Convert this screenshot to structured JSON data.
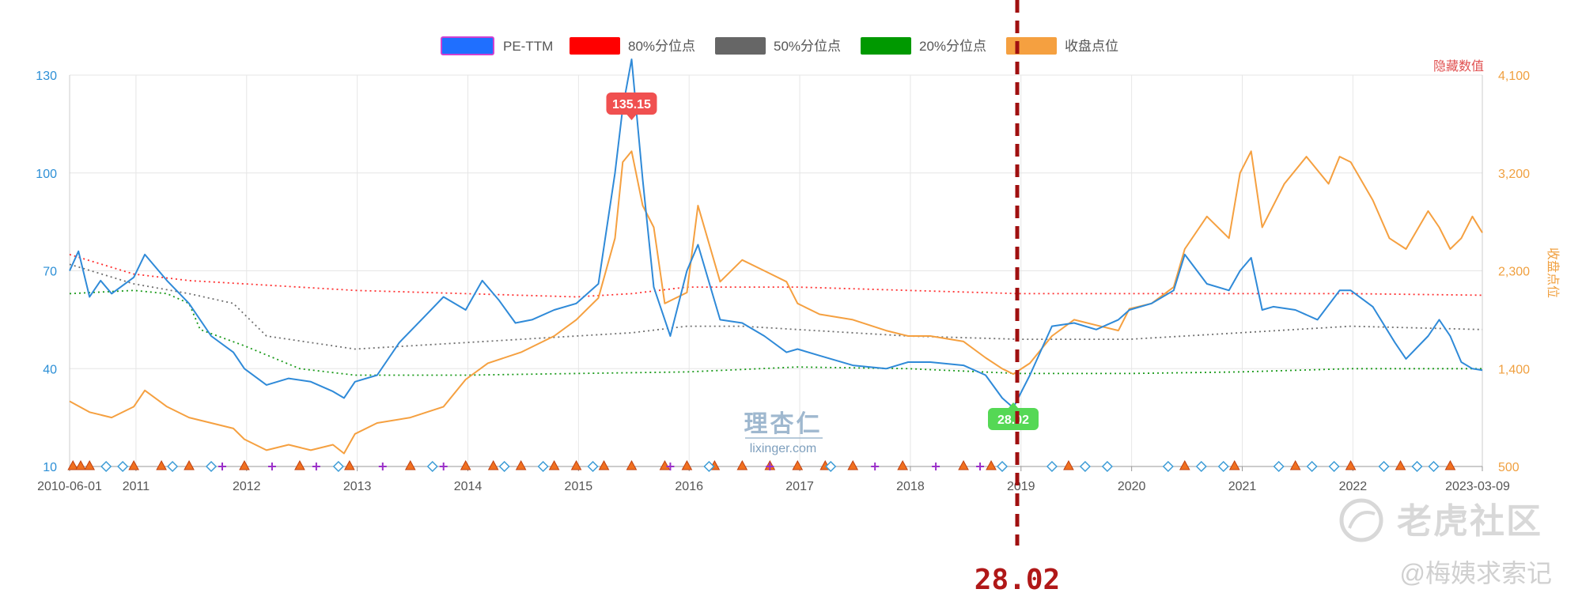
{
  "chart_data": {
    "type": "line",
    "legend": [
      {
        "name": "PE-TTM",
        "color": "#1f6fff",
        "style": "solid"
      },
      {
        "name": "80%分位点",
        "color": "#ff0000",
        "style": "dotted"
      },
      {
        "name": "50%分位点",
        "color": "#666666",
        "style": "dotted"
      },
      {
        "name": "20%分位点",
        "color": "#009900",
        "style": "dotted"
      },
      {
        "name": "收盘点位",
        "color": "#f5a040",
        "style": "solid"
      }
    ],
    "legend_position": "top-center",
    "y_left": {
      "ticks": [
        "130",
        "100",
        "70",
        "40",
        "10"
      ],
      "min": 10,
      "max": 130,
      "color": "#2c8fd6"
    },
    "y_right": {
      "ticks": [
        "4,100",
        "3,200",
        "2,300",
        "1,400",
        "500"
      ],
      "min": 500,
      "max": 4100,
      "label": "收盘点位",
      "color": "#f0a040"
    },
    "hidden_values_label": "隐藏数值",
    "x_ticks": [
      "2010-06-01",
      "2011",
      "2012",
      "2013",
      "2014",
      "2015",
      "2016",
      "2017",
      "2018",
      "2019",
      "2020",
      "2021",
      "2022",
      "2023-03-09"
    ],
    "x_range": [
      "2010-06-01",
      "2023-03-09"
    ],
    "grid": true,
    "series": [
      {
        "name": "PE-TTM",
        "axis": "left",
        "x": [
          2010.42,
          2010.5,
          2010.6,
          2010.7,
          2010.8,
          2011.0,
          2011.1,
          2011.3,
          2011.5,
          2011.7,
          2011.9,
          2012.0,
          2012.2,
          2012.4,
          2012.6,
          2012.8,
          2012.9,
          2013.0,
          2013.2,
          2013.4,
          2013.6,
          2013.8,
          2014.0,
          2014.15,
          2014.3,
          2014.45,
          2014.6,
          2014.8,
          2015.0,
          2015.2,
          2015.35,
          2015.42,
          2015.5,
          2015.6,
          2015.7,
          2015.85,
          2016.0,
          2016.1,
          2016.3,
          2016.5,
          2016.7,
          2016.9,
          2017.0,
          2017.2,
          2017.5,
          2017.8,
          2018.0,
          2018.2,
          2018.5,
          2018.7,
          2018.85,
          2018.95,
          2019.1,
          2019.3,
          2019.5,
          2019.7,
          2019.9,
          2020.0,
          2020.2,
          2020.4,
          2020.5,
          2020.7,
          2020.9,
          2021.0,
          2021.1,
          2021.2,
          2021.3,
          2021.5,
          2021.7,
          2021.9,
          2022.0,
          2022.2,
          2022.4,
          2022.5,
          2022.7,
          2022.8,
          2022.9,
          2023.0,
          2023.1,
          2023.19
        ],
        "values": [
          70,
          76,
          62,
          67,
          63,
          68,
          75,
          67,
          60,
          50,
          45,
          40,
          35,
          37,
          36,
          33,
          31,
          36,
          38,
          48,
          55,
          62,
          58,
          67,
          61,
          54,
          55,
          58,
          60,
          66,
          100,
          120,
          135,
          98,
          65,
          50,
          70,
          78,
          55,
          54,
          50,
          45,
          46,
          44,
          41,
          40,
          42,
          42,
          41,
          38,
          31,
          28.02,
          38,
          53,
          54,
          52,
          55,
          58,
          60,
          64,
          75,
          66,
          64,
          70,
          74,
          58,
          59,
          58,
          55,
          64,
          64,
          59,
          48,
          43,
          50,
          55,
          50,
          42,
          40,
          39.5
        ]
      },
      {
        "name": "收盘点位",
        "axis": "right",
        "x": [
          2010.42,
          2010.6,
          2010.8,
          2011.0,
          2011.1,
          2011.3,
          2011.5,
          2011.7,
          2011.9,
          2012.0,
          2012.2,
          2012.4,
          2012.6,
          2012.8,
          2012.9,
          2013.0,
          2013.2,
          2013.5,
          2013.8,
          2014.0,
          2014.2,
          2014.5,
          2014.8,
          2015.0,
          2015.2,
          2015.35,
          2015.42,
          2015.5,
          2015.6,
          2015.7,
          2015.8,
          2016.0,
          2016.1,
          2016.3,
          2016.5,
          2016.7,
          2016.9,
          2017.0,
          2017.2,
          2017.5,
          2017.8,
          2018.0,
          2018.2,
          2018.5,
          2018.7,
          2018.85,
          2018.95,
          2019.1,
          2019.3,
          2019.5,
          2019.7,
          2019.9,
          2020.0,
          2020.2,
          2020.4,
          2020.5,
          2020.7,
          2020.9,
          2021.0,
          2021.1,
          2021.2,
          2021.4,
          2021.6,
          2021.8,
          2021.9,
          2022.0,
          2022.2,
          2022.35,
          2022.5,
          2022.7,
          2022.8,
          2022.9,
          2023.0,
          2023.1,
          2023.19
        ],
        "values": [
          1100,
          1000,
          950,
          1050,
          1200,
          1050,
          950,
          900,
          850,
          750,
          650,
          700,
          650,
          700,
          620,
          800,
          900,
          950,
          1050,
          1300,
          1450,
          1550,
          1700,
          1850,
          2050,
          2600,
          3300,
          3400,
          2900,
          2700,
          2000,
          2100,
          2900,
          2200,
          2400,
          2300,
          2200,
          2000,
          1900,
          1850,
          1750,
          1700,
          1700,
          1650,
          1500,
          1400,
          1350,
          1450,
          1700,
          1850,
          1800,
          1750,
          1950,
          2000,
          2150,
          2500,
          2800,
          2600,
          3200,
          3400,
          2700,
          3100,
          3350,
          3100,
          3350,
          3300,
          2950,
          2600,
          2500,
          2850,
          2700,
          2500,
          2600,
          2800,
          2650
        ]
      },
      {
        "name": "80%分位点",
        "axis": "left",
        "x": [
          2010.42,
          2011.0,
          2011.5,
          2012.0,
          2013.0,
          2014.0,
          2015.0,
          2015.5,
          2016.0,
          2017.0,
          2018.0,
          2019.0,
          2020.0,
          2021.0,
          2022.0,
          2023.19
        ],
        "values": [
          75,
          69,
          67,
          66,
          64,
          63,
          62,
          63,
          65,
          65,
          64,
          63,
          63,
          63,
          63,
          62.5
        ]
      },
      {
        "name": "50%分位点",
        "axis": "left",
        "x": [
          2010.42,
          2011.0,
          2011.5,
          2011.9,
          2012.2,
          2013.0,
          2014.0,
          2015.0,
          2015.5,
          2016.0,
          2016.5,
          2017.0,
          2018.0,
          2019.0,
          2020.0,
          2021.0,
          2022.0,
          2023.19
        ],
        "values": [
          72,
          66,
          63,
          60,
          50,
          46,
          48,
          50,
          51,
          53,
          53,
          52,
          50,
          49,
          49,
          51,
          53,
          52
        ]
      },
      {
        "name": "20%分位点",
        "axis": "left",
        "x": [
          2010.42,
          2011.0,
          2011.3,
          2011.5,
          2011.6,
          2012.0,
          2012.5,
          2013.0,
          2014.0,
          2015.0,
          2016.0,
          2017.0,
          2018.0,
          2019.0,
          2020.0,
          2021.0,
          2022.0,
          2023.19
        ],
        "values": [
          63,
          64,
          63,
          60,
          52,
          47,
          40,
          38,
          38,
          38.5,
          39,
          40.5,
          40,
          38.5,
          38.5,
          39,
          40,
          40
        ]
      }
    ],
    "annotations": [
      {
        "text": "135.15",
        "x": 2015.5,
        "y": 135.15,
        "color": "#f05050"
      },
      {
        "text": "28.02",
        "x": 2018.95,
        "y": 28.02,
        "color": "#55d855"
      }
    ],
    "marker_legend_note": "event markers along bottom axis",
    "markers": {
      "triangles": [
        2010.45,
        2010.52,
        2010.6,
        2011.0,
        2011.25,
        2011.5,
        2012.0,
        2012.5,
        2012.95,
        2013.5,
        2014.0,
        2014.25,
        2014.5,
        2014.8,
        2015.0,
        2015.25,
        2015.5,
        2015.8,
        2016.0,
        2016.25,
        2016.5,
        2016.75,
        2017.0,
        2017.25,
        2017.5,
        2017.95,
        2018.5,
        2018.75,
        2019.45,
        2020.5,
        2020.95,
        2021.5,
        2022.0,
        2022.45,
        2022.9
      ],
      "diamonds": [
        2010.75,
        2010.9,
        2011.35,
        2011.7,
        2012.85,
        2013.7,
        2014.35,
        2014.7,
        2015.15,
        2016.2,
        2017.3,
        2018.85,
        2019.3,
        2019.6,
        2019.8,
        2020.35,
        2020.65,
        2020.85,
        2021.35,
        2021.65,
        2021.85,
        2022.3,
        2022.6,
        2022.75
      ],
      "pluses": [
        2011.8,
        2012.25,
        2012.65,
        2013.25,
        2013.8,
        2015.85,
        2016.75,
        2017.7,
        2018.25,
        2018.65
      ]
    },
    "cursor": {
      "x": 2018.95,
      "value_text": "28.02"
    }
  },
  "watermarks": {
    "lixinger_cn": "理杏仁",
    "lixinger_en": "lixinger.com",
    "community": "老虎社区",
    "author": "@梅姨求索记"
  }
}
